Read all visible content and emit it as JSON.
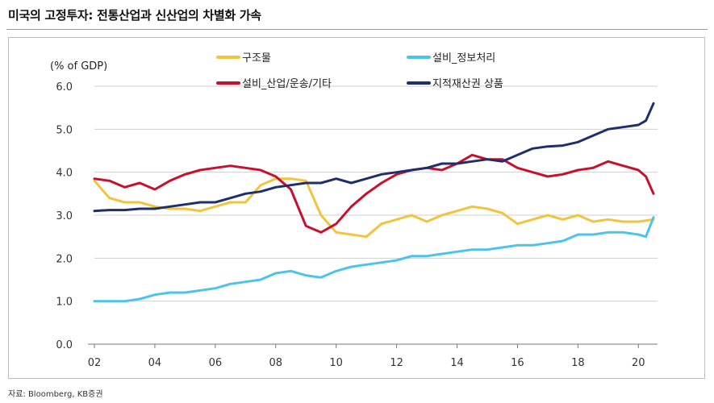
{
  "title": "미국의  고정투자: 전통산업과 신산업의 차별화 가속",
  "source": "자료: Bloomberg, KB증권",
  "chart_data": {
    "type": "line",
    "unit_label": "(% of GDP)",
    "ylim": [
      0,
      6
    ],
    "yticks": [
      "0.0",
      "1.0",
      "2.0",
      "3.0",
      "4.0",
      "5.0",
      "6.0"
    ],
    "xlim": [
      2002,
      2020.5
    ],
    "xticks": [
      "02",
      "04",
      "06",
      "08",
      "10",
      "12",
      "14",
      "16",
      "18",
      "20"
    ],
    "grid": "horizontal",
    "legend_position": "top",
    "series": [
      {
        "name": "구조물",
        "color": "#F2C43D",
        "x": [
          2002.0,
          2002.5,
          2003.0,
          2003.5,
          2004.0,
          2004.5,
          2005.0,
          2005.5,
          2006.0,
          2006.5,
          2007.0,
          2007.5,
          2008.0,
          2008.5,
          2009.0,
          2009.5,
          2010.0,
          2010.5,
          2011.0,
          2011.5,
          2012.0,
          2012.5,
          2013.0,
          2013.5,
          2014.0,
          2014.5,
          2015.0,
          2015.5,
          2016.0,
          2016.5,
          2017.0,
          2017.5,
          2018.0,
          2018.5,
          2019.0,
          2019.5,
          2020.0,
          2020.5
        ],
        "values": [
          3.8,
          3.4,
          3.3,
          3.3,
          3.2,
          3.15,
          3.15,
          3.1,
          3.2,
          3.3,
          3.3,
          3.7,
          3.85,
          3.85,
          3.8,
          3.0,
          2.6,
          2.55,
          2.5,
          2.8,
          2.9,
          3.0,
          2.85,
          3.0,
          3.1,
          3.2,
          3.15,
          3.05,
          2.8,
          2.9,
          3.0,
          2.9,
          3.0,
          2.85,
          2.9,
          2.85,
          2.85,
          2.9
        ]
      },
      {
        "name": "설비_정보처리",
        "color": "#4DC3EC",
        "x": [
          2002.0,
          2002.5,
          2003.0,
          2003.5,
          2004.0,
          2004.5,
          2005.0,
          2005.5,
          2006.0,
          2006.5,
          2007.0,
          2007.5,
          2008.0,
          2008.5,
          2009.0,
          2009.5,
          2010.0,
          2010.5,
          2011.0,
          2011.5,
          2012.0,
          2012.5,
          2013.0,
          2013.5,
          2014.0,
          2014.5,
          2015.0,
          2015.5,
          2016.0,
          2016.5,
          2017.0,
          2017.5,
          2018.0,
          2018.5,
          2019.0,
          2019.5,
          2020.0,
          2020.25,
          2020.5
        ],
        "values": [
          1.0,
          1.0,
          1.0,
          1.05,
          1.15,
          1.2,
          1.2,
          1.25,
          1.3,
          1.4,
          1.45,
          1.5,
          1.65,
          1.7,
          1.6,
          1.55,
          1.7,
          1.8,
          1.85,
          1.9,
          1.95,
          2.05,
          2.05,
          2.1,
          2.15,
          2.2,
          2.2,
          2.25,
          2.3,
          2.3,
          2.35,
          2.4,
          2.55,
          2.55,
          2.6,
          2.6,
          2.55,
          2.5,
          2.95
        ]
      },
      {
        "name": "설비_산업/운송/기타",
        "color": "#C8102E",
        "x": [
          2002.0,
          2002.5,
          2003.0,
          2003.5,
          2004.0,
          2004.5,
          2005.0,
          2005.5,
          2006.0,
          2006.5,
          2007.0,
          2007.5,
          2008.0,
          2008.5,
          2009.0,
          2009.5,
          2010.0,
          2010.5,
          2011.0,
          2011.5,
          2012.0,
          2012.5,
          2013.0,
          2013.5,
          2014.0,
          2014.5,
          2015.0,
          2015.5,
          2016.0,
          2016.5,
          2017.0,
          2017.5,
          2018.0,
          2018.5,
          2019.0,
          2019.5,
          2020.0,
          2020.25,
          2020.5
        ],
        "values": [
          3.85,
          3.8,
          3.65,
          3.75,
          3.6,
          3.8,
          3.95,
          4.05,
          4.1,
          4.15,
          4.1,
          4.05,
          3.9,
          3.6,
          2.75,
          2.6,
          2.8,
          3.2,
          3.5,
          3.75,
          3.95,
          4.05,
          4.1,
          4.05,
          4.2,
          4.4,
          4.3,
          4.3,
          4.1,
          4.0,
          3.9,
          3.95,
          4.05,
          4.1,
          4.25,
          4.15,
          4.05,
          3.9,
          3.5
        ]
      },
      {
        "name": "지적재산권 상품",
        "color": "#1F2F6B",
        "x": [
          2002.0,
          2002.5,
          2003.0,
          2003.5,
          2004.0,
          2004.5,
          2005.0,
          2005.5,
          2006.0,
          2006.5,
          2007.0,
          2007.5,
          2008.0,
          2008.5,
          2009.0,
          2009.5,
          2010.0,
          2010.5,
          2011.0,
          2011.5,
          2012.0,
          2012.5,
          2013.0,
          2013.5,
          2014.0,
          2014.5,
          2015.0,
          2015.5,
          2016.0,
          2016.5,
          2017.0,
          2017.5,
          2018.0,
          2018.5,
          2019.0,
          2019.5,
          2020.0,
          2020.25,
          2020.5
        ],
        "values": [
          3.1,
          3.12,
          3.12,
          3.15,
          3.15,
          3.2,
          3.25,
          3.3,
          3.3,
          3.4,
          3.5,
          3.55,
          3.65,
          3.7,
          3.75,
          3.75,
          3.85,
          3.75,
          3.85,
          3.95,
          4.0,
          4.05,
          4.1,
          4.2,
          4.2,
          4.25,
          4.3,
          4.25,
          4.4,
          4.55,
          4.6,
          4.62,
          4.7,
          4.85,
          5.0,
          5.05,
          5.1,
          5.2,
          5.6
        ]
      }
    ]
  }
}
